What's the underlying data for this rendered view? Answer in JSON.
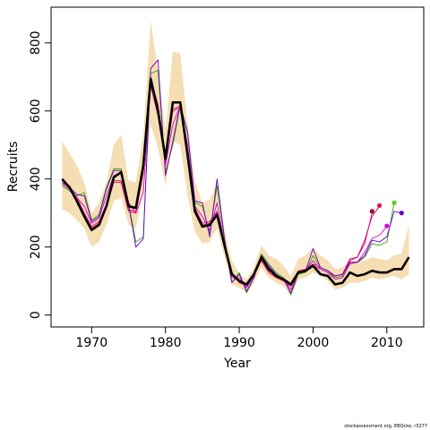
{
  "chart_data": {
    "type": "line",
    "title": "",
    "xlabel": "Year",
    "ylabel": "Recruits",
    "xlim": [
      1964.5,
      2015
    ],
    "ylim": [
      -35,
      905
    ],
    "xticks": [
      1970,
      1980,
      1990,
      2000,
      2010
    ],
    "yticks": [
      0,
      200,
      400,
      600,
      800
    ],
    "grid": false,
    "legend": "none",
    "band": {
      "x": [
        1966,
        1967,
        1968,
        1969,
        1970,
        1971,
        1972,
        1973,
        1974,
        1975,
        1976,
        1977,
        1978,
        1979,
        1980,
        1981,
        1982,
        1983,
        1984,
        1985,
        1986,
        1987,
        1988,
        1989,
        1990,
        1991,
        1992,
        1993,
        1994,
        1995,
        1996,
        1997,
        1998,
        1999,
        2000,
        2001,
        2002,
        2003,
        2004,
        2005,
        2006,
        2007,
        2008,
        2009,
        2010,
        2011,
        2012,
        2013
      ],
      "lower": [
        310,
        300,
        280,
        255,
        200,
        215,
        265,
        335,
        345,
        265,
        255,
        370,
        560,
        490,
        380,
        510,
        500,
        350,
        245,
        210,
        215,
        255,
        170,
        90,
        80,
        65,
        95,
        140,
        110,
        95,
        85,
        55,
        105,
        110,
        125,
        115,
        100,
        75,
        80,
        95,
        95,
        100,
        110,
        105,
        110,
        115,
        105,
        120
      ],
      "upper": [
        510,
        475,
        440,
        390,
        300,
        330,
        390,
        500,
        530,
        395,
        390,
        530,
        865,
        715,
        540,
        775,
        770,
        560,
        395,
        330,
        340,
        390,
        250,
        160,
        120,
        105,
        140,
        205,
        175,
        165,
        145,
        115,
        165,
        175,
        200,
        175,
        160,
        135,
        140,
        160,
        160,
        160,
        170,
        165,
        160,
        175,
        180,
        265
      ],
      "color": "#f5deb3"
    },
    "series": [
      {
        "color": "#000000",
        "x": [
          1966,
          1967,
          1968,
          1969,
          1970,
          1971,
          1972,
          1973,
          1974,
          1975,
          1976,
          1977,
          1978,
          1979,
          1980,
          1981,
          1982,
          1983,
          1984,
          1985,
          1986,
          1987,
          1988,
          1989,
          1990,
          1991,
          1992,
          1993,
          1994,
          1995,
          1996,
          1997,
          1998,
          1999,
          2000,
          2001,
          2002,
          2003,
          2004,
          2005,
          2006,
          2007,
          2008,
          2009,
          2010,
          2011,
          2012,
          2013
        ],
        "y": [
          400,
          375,
          335,
          290,
          250,
          265,
          320,
          405,
          420,
          320,
          315,
          440,
          695,
          600,
          460,
          625,
          625,
          470,
          305,
          260,
          265,
          295,
          205,
          120,
          100,
          90,
          120,
          170,
          135,
          115,
          105,
          90,
          125,
          130,
          145,
          120,
          115,
          90,
          95,
          125,
          115,
          120,
          130,
          125,
          125,
          135,
          135,
          170
        ]
      },
      {
        "color": "#dd0044",
        "x": [
          1966,
          1967,
          1968,
          1969,
          1970,
          1971,
          1972,
          1973,
          1974,
          1975,
          1976,
          1977,
          1978,
          1979,
          1980,
          1981,
          1982,
          1983,
          1984,
          1985,
          1986,
          1987,
          1988,
          1989,
          1990,
          1991,
          1992,
          1993,
          1994,
          1995,
          1996,
          1997,
          1998,
          1999,
          2000,
          2001,
          2002,
          2003,
          2004,
          2005,
          2006,
          2007,
          2008,
          2009
        ],
        "y": [
          390,
          375,
          340,
          295,
          255,
          270,
          320,
          390,
          390,
          305,
          300,
          420,
          680,
          590,
          450,
          600,
          610,
          460,
          310,
          265,
          270,
          300,
          205,
          120,
          95,
          85,
          115,
          160,
          125,
          110,
          100,
          85,
          125,
          130,
          145,
          135,
          125,
          110,
          115,
          160,
          170,
          220,
          290,
          320
        ]
      },
      {
        "color": "#dd0088",
        "x": [
          1966,
          1967,
          1968,
          1969,
          1970,
          1971,
          1972,
          1973,
          1974,
          1975,
          1976,
          1977,
          1978,
          1979,
          1980,
          1981,
          1982,
          1983,
          1984,
          1985,
          1986,
          1987,
          1988,
          1989,
          1990,
          1991,
          1992,
          1993,
          1994,
          1995,
          1996,
          1997,
          1998,
          1999,
          2000,
          2001,
          2002,
          2003,
          2004,
          2005,
          2006,
          2007,
          2008
        ],
        "y": [
          395,
          380,
          345,
          300,
          260,
          275,
          325,
          395,
          395,
          310,
          305,
          425,
          675,
          585,
          455,
          605,
          615,
          465,
          315,
          270,
          275,
          305,
          210,
          125,
          100,
          90,
          120,
          165,
          130,
          115,
          105,
          90,
          130,
          135,
          150,
          140,
          130,
          115,
          120,
          165,
          170,
          210,
          300
        ]
      },
      {
        "color": "#33aa00",
        "x": [
          1966,
          1967,
          1968,
          1969,
          1970,
          1971,
          1972,
          1973,
          1974,
          1975,
          1976,
          1977,
          1978,
          1979,
          1980,
          1981,
          1982,
          1983,
          1984,
          1985,
          1986,
          1987,
          1988,
          1989,
          1990,
          1991,
          1992,
          1993,
          1994,
          1995,
          1996,
          1997,
          1998,
          1999,
          2000,
          2001,
          2002,
          2003,
          2004,
          2005,
          2006,
          2007,
          2008,
          2009,
          2010,
          2011
        ],
        "y": [
          380,
          365,
          350,
          360,
          280,
          295,
          375,
          430,
          430,
          330,
          215,
          230,
          710,
          720,
          420,
          500,
          615,
          540,
          330,
          320,
          240,
          380,
          220,
          95,
          125,
          65,
          110,
          180,
          150,
          125,
          110,
          60,
          120,
          125,
          175,
          140,
          130,
          110,
          115,
          155,
          155,
          170,
          210,
          205,
          215,
          330
        ]
      },
      {
        "color": "#dd00dd",
        "x": [
          1966,
          1967,
          1968,
          1969,
          1970,
          1971,
          1972,
          1973,
          1974,
          1975,
          1976,
          1977,
          1978,
          1979,
          1980,
          1981,
          1982,
          1983,
          1984,
          1985,
          1986,
          1987,
          1988,
          1989,
          1990,
          1991,
          1992,
          1993,
          1994,
          1995,
          1996,
          1997,
          1998,
          1999,
          2000,
          2001,
          2002,
          2003,
          2004,
          2005,
          2006,
          2007,
          2008,
          2009,
          2010
        ],
        "y": [
          385,
          370,
          345,
          320,
          270,
          285,
          350,
          410,
          420,
          330,
          300,
          360,
          690,
          620,
          440,
          560,
          615,
          500,
          320,
          290,
          250,
          330,
          210,
          110,
          110,
          80,
          115,
          170,
          140,
          120,
          105,
          75,
          125,
          130,
          160,
          135,
          125,
          105,
          110,
          150,
          155,
          185,
          225,
          235,
          260
        ]
      },
      {
        "color": "#6600cc",
        "x": [
          1966,
          1967,
          1968,
          1969,
          1970,
          1971,
          1972,
          1973,
          1974,
          1975,
          1976,
          1977,
          1978,
          1979,
          1980,
          1981,
          1982,
          1983,
          1984,
          1985,
          1986,
          1987,
          1988,
          1989,
          1990,
          1991,
          1992,
          1993,
          1994,
          1995,
          1996,
          1997,
          1998,
          1999,
          2000,
          2001,
          2002,
          2003,
          2004,
          2005,
          2006,
          2007,
          2008,
          2009,
          2010,
          2011,
          2012
        ],
        "y": [
          390,
          375,
          355,
          350,
          275,
          290,
          370,
          425,
          425,
          325,
          200,
          225,
          725,
          750,
          410,
          510,
          620,
          535,
          335,
          330,
          230,
          400,
          225,
          95,
          120,
          70,
          110,
          175,
          145,
          120,
          105,
          65,
          125,
          130,
          195,
          140,
          130,
          115,
          120,
          155,
          155,
          175,
          220,
          215,
          230,
          305,
          300
        ]
      }
    ],
    "endpoints": [
      {
        "x": 2008,
        "y": 305,
        "color": "#aa0044"
      },
      {
        "x": 2009,
        "y": 322,
        "color": "#ee1144"
      },
      {
        "x": 2010,
        "y": 262,
        "color": "#dd00dd"
      },
      {
        "x": 2011,
        "y": 330,
        "color": "#55cc22"
      },
      {
        "x": 2012,
        "y": 300,
        "color": "#6600cc"
      }
    ]
  },
  "credit": "stockassessment.org, EBQcke, r3277"
}
